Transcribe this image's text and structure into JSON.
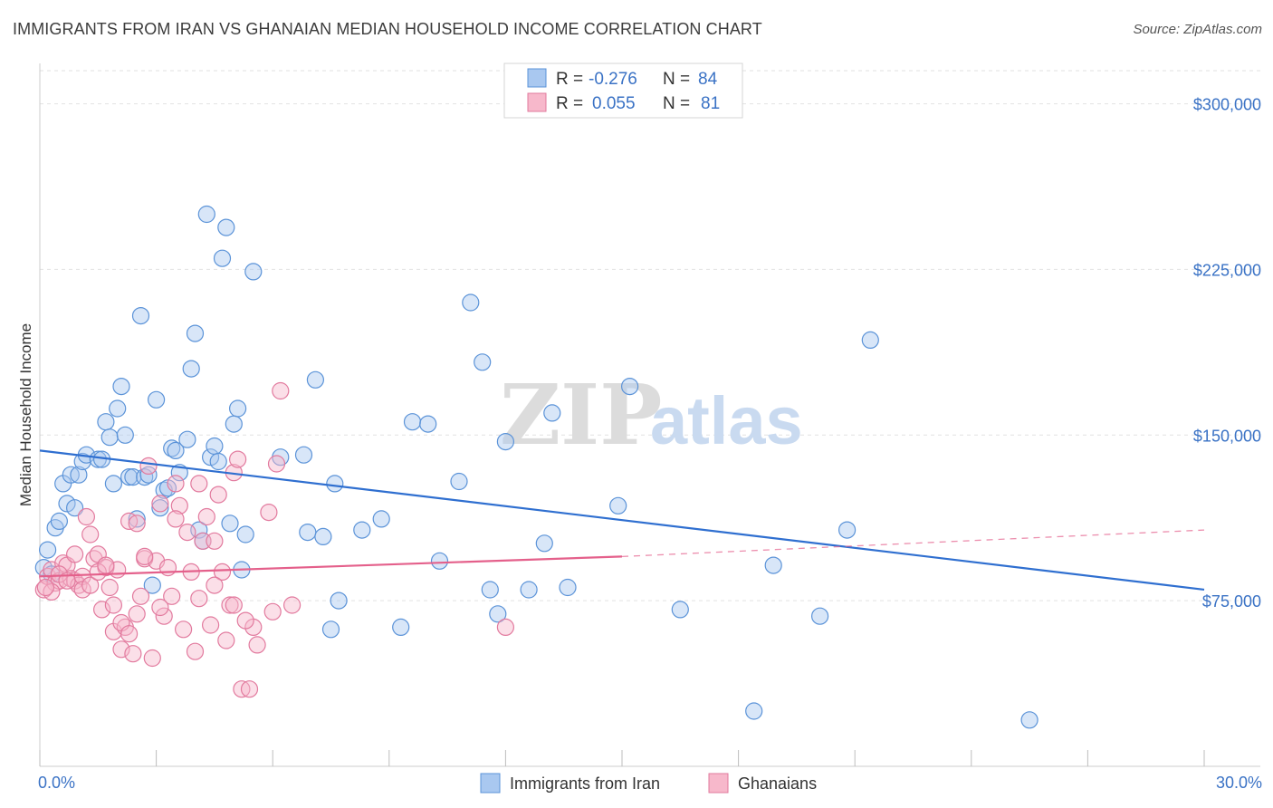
{
  "header": {
    "title": "IMMIGRANTS FROM IRAN VS GHANAIAN MEDIAN HOUSEHOLD INCOME CORRELATION CHART",
    "source": "Source: ZipAtlas.com"
  },
  "watermark": {
    "part1": "ZIP",
    "part2": "atlas"
  },
  "legend": {
    "rows": [
      {
        "r_label": "R =",
        "r_value": "-0.276",
        "n_label": "N =",
        "n_value": "84",
        "color": "#a9c8f0"
      },
      {
        "r_label": "R =",
        "r_value": "0.055",
        "n_label": "N =",
        "n_value": "81",
        "color": "#f7b8cb"
      }
    ]
  },
  "bottom_legend": {
    "items": [
      {
        "label": "Immigrants from Iran",
        "color": "#a9c8f0"
      },
      {
        "label": "Ghanaians",
        "color": "#f7b8cb"
      }
    ]
  },
  "chart_data": {
    "type": "scatter",
    "ylabel": "Median Household Income",
    "xlim": [
      0,
      30
    ],
    "ylim": [
      0,
      315000
    ],
    "x_tick_labels": [
      {
        "value": 0,
        "label": "0.0%"
      },
      {
        "value": 30,
        "label": "30.0%"
      }
    ],
    "y_tick_labels": [
      {
        "value": 75000,
        "label": "$75,000"
      },
      {
        "value": 150000,
        "label": "$150,000"
      },
      {
        "value": 225000,
        "label": "$225,000"
      },
      {
        "value": 300000,
        "label": "$300,000"
      }
    ],
    "grid": true,
    "legend_position": "top-center",
    "series": [
      {
        "name": "Immigrants from Iran",
        "color": "#5b93d8",
        "fill": "#a9c8f0",
        "trend": {
          "x": [
            0,
            30
          ],
          "y": [
            143000,
            80000
          ],
          "color": "#2f6fd0"
        },
        "points": [
          [
            0.1,
            90000
          ],
          [
            0.2,
            98000
          ],
          [
            0.3,
            87000
          ],
          [
            0.4,
            108000
          ],
          [
            0.5,
            111000
          ],
          [
            0.6,
            128000
          ],
          [
            0.7,
            119000
          ],
          [
            0.8,
            132000
          ],
          [
            0.9,
            117000
          ],
          [
            1.0,
            132000
          ],
          [
            1.1,
            138000
          ],
          [
            1.2,
            141000
          ],
          [
            1.5,
            139000
          ],
          [
            1.6,
            139000
          ],
          [
            1.7,
            156000
          ],
          [
            1.8,
            149000
          ],
          [
            1.9,
            128000
          ],
          [
            2.0,
            162000
          ],
          [
            2.1,
            172000
          ],
          [
            2.2,
            150000
          ],
          [
            2.3,
            131000
          ],
          [
            2.4,
            131000
          ],
          [
            2.5,
            112000
          ],
          [
            2.6,
            204000
          ],
          [
            2.7,
            131000
          ],
          [
            2.8,
            132000
          ],
          [
            2.9,
            82000
          ],
          [
            3.0,
            166000
          ],
          [
            3.1,
            117000
          ],
          [
            3.2,
            125000
          ],
          [
            3.3,
            126000
          ],
          [
            3.4,
            144000
          ],
          [
            3.5,
            143000
          ],
          [
            3.6,
            133000
          ],
          [
            3.8,
            148000
          ],
          [
            3.9,
            180000
          ],
          [
            4.0,
            196000
          ],
          [
            4.1,
            107000
          ],
          [
            4.2,
            102000
          ],
          [
            4.3,
            250000
          ],
          [
            4.4,
            140000
          ],
          [
            4.5,
            145000
          ],
          [
            4.6,
            138000
          ],
          [
            4.7,
            230000
          ],
          [
            4.8,
            244000
          ],
          [
            4.9,
            110000
          ],
          [
            5.0,
            155000
          ],
          [
            5.1,
            162000
          ],
          [
            5.2,
            89000
          ],
          [
            5.3,
            105000
          ],
          [
            5.5,
            224000
          ],
          [
            6.2,
            140000
          ],
          [
            6.8,
            141000
          ],
          [
            6.9,
            106000
          ],
          [
            7.1,
            175000
          ],
          [
            7.3,
            104000
          ],
          [
            7.5,
            62000
          ],
          [
            7.6,
            128000
          ],
          [
            7.7,
            75000
          ],
          [
            8.3,
            107000
          ],
          [
            8.8,
            112000
          ],
          [
            9.3,
            63000
          ],
          [
            9.6,
            156000
          ],
          [
            10.0,
            155000
          ],
          [
            10.3,
            93000
          ],
          [
            10.8,
            129000
          ],
          [
            11.1,
            210000
          ],
          [
            11.4,
            183000
          ],
          [
            11.6,
            80000
          ],
          [
            11.8,
            69000
          ],
          [
            12.0,
            147000
          ],
          [
            12.6,
            80000
          ],
          [
            13.0,
            101000
          ],
          [
            13.2,
            160000
          ],
          [
            13.6,
            81000
          ],
          [
            14.9,
            118000
          ],
          [
            15.2,
            172000
          ],
          [
            16.5,
            71000
          ],
          [
            18.4,
            25000
          ],
          [
            18.9,
            91000
          ],
          [
            20.1,
            68000
          ],
          [
            20.8,
            107000
          ],
          [
            21.4,
            193000
          ],
          [
            25.5,
            21000
          ]
        ]
      },
      {
        "name": "Ghanaians",
        "color": "#e27a9e",
        "fill": "#f7b8cb",
        "trend": {
          "x": [
            0,
            15
          ],
          "y": [
            86000,
            95000
          ],
          "color": "#e4608b",
          "dashed_extension": {
            "x": [
              15,
              30
            ],
            "y": [
              95000,
              107000
            ]
          }
        },
        "points": [
          [
            0.1,
            80000
          ],
          [
            0.2,
            86000
          ],
          [
            0.3,
            89000
          ],
          [
            0.4,
            83000
          ],
          [
            0.5,
            84000
          ],
          [
            0.6,
            92000
          ],
          [
            0.7,
            91000
          ],
          [
            0.8,
            85000
          ],
          [
            0.9,
            84000
          ],
          [
            1.0,
            82000
          ],
          [
            1.1,
            86000
          ],
          [
            1.2,
            113000
          ],
          [
            1.3,
            105000
          ],
          [
            1.4,
            94000
          ],
          [
            1.5,
            96000
          ],
          [
            1.6,
            71000
          ],
          [
            1.7,
            90000
          ],
          [
            1.8,
            81000
          ],
          [
            1.9,
            61000
          ],
          [
            2.0,
            89000
          ],
          [
            2.1,
            53000
          ],
          [
            2.2,
            63000
          ],
          [
            2.3,
            111000
          ],
          [
            2.4,
            51000
          ],
          [
            2.5,
            69000
          ],
          [
            2.6,
            77000
          ],
          [
            2.7,
            94000
          ],
          [
            2.8,
            136000
          ],
          [
            2.9,
            49000
          ],
          [
            3.0,
            93000
          ],
          [
            3.1,
            119000
          ],
          [
            3.2,
            68000
          ],
          [
            3.3,
            90000
          ],
          [
            3.4,
            77000
          ],
          [
            3.5,
            128000
          ],
          [
            3.6,
            118000
          ],
          [
            3.7,
            62000
          ],
          [
            3.8,
            106000
          ],
          [
            3.9,
            88000
          ],
          [
            4.0,
            52000
          ],
          [
            4.1,
            128000
          ],
          [
            4.2,
            102000
          ],
          [
            4.3,
            113000
          ],
          [
            4.4,
            64000
          ],
          [
            4.5,
            102000
          ],
          [
            4.6,
            123000
          ],
          [
            4.7,
            88000
          ],
          [
            4.8,
            57000
          ],
          [
            4.9,
            73000
          ],
          [
            5.0,
            133000
          ],
          [
            5.1,
            139000
          ],
          [
            5.2,
            35000
          ],
          [
            5.4,
            35000
          ],
          [
            5.5,
            63000
          ],
          [
            5.6,
            55000
          ],
          [
            5.9,
            115000
          ],
          [
            6.0,
            70000
          ],
          [
            6.1,
            137000
          ],
          [
            6.2,
            170000
          ],
          [
            6.5,
            73000
          ],
          [
            12.0,
            63000
          ],
          [
            0.3,
            79000
          ],
          [
            0.5,
            87000
          ],
          [
            0.7,
            84000
          ],
          [
            0.9,
            96000
          ],
          [
            1.1,
            80000
          ],
          [
            1.3,
            82000
          ],
          [
            1.5,
            88000
          ],
          [
            1.7,
            91000
          ],
          [
            1.9,
            73000
          ],
          [
            2.1,
            65000
          ],
          [
            2.3,
            60000
          ],
          [
            2.5,
            110000
          ],
          [
            2.7,
            95000
          ],
          [
            3.1,
            72000
          ],
          [
            3.5,
            112000
          ],
          [
            4.1,
            76000
          ],
          [
            4.5,
            82000
          ],
          [
            5.0,
            73000
          ],
          [
            5.3,
            66000
          ],
          [
            0.15,
            81000
          ]
        ]
      }
    ]
  }
}
